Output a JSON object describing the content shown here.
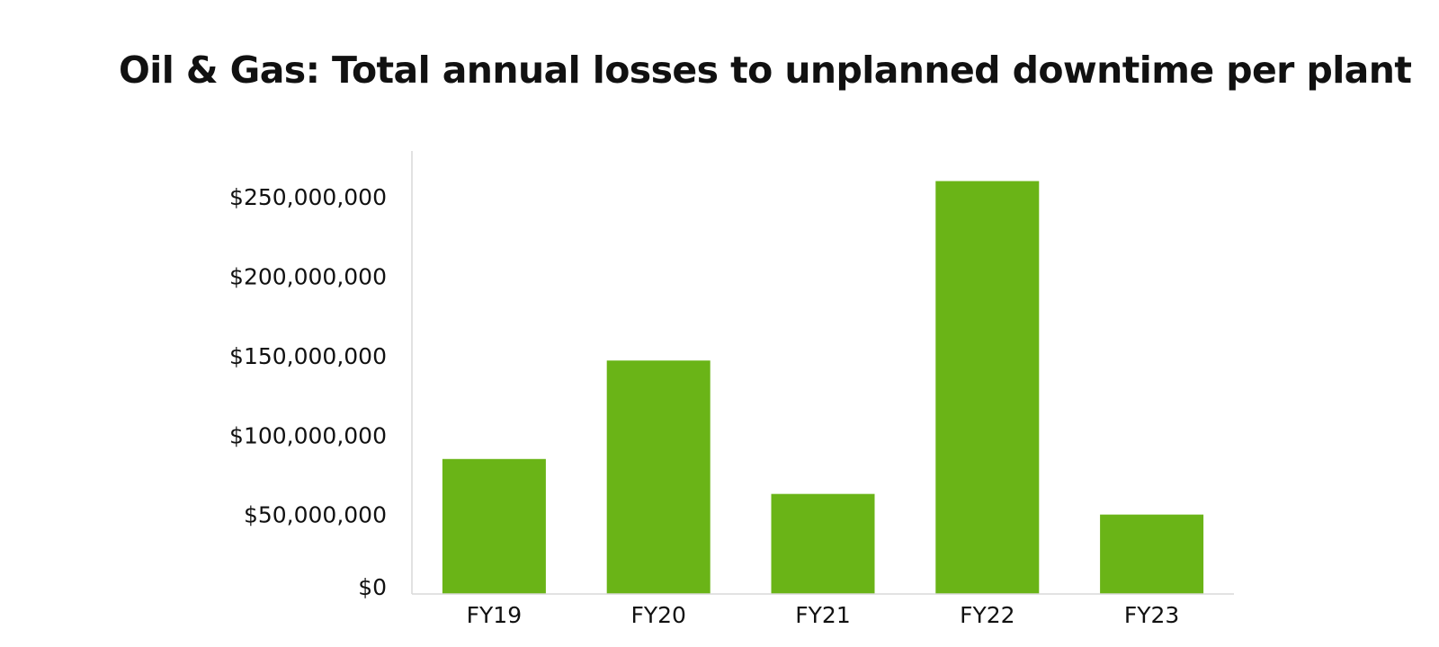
{
  "chart_data": {
    "type": "bar",
    "title": "Oil & Gas: Total annual losses to unplanned downtime per plant",
    "xlabel": "",
    "ylabel": "",
    "categories": [
      "FY19",
      "FY20",
      "FY21",
      "FY22",
      "FY23"
    ],
    "values": [
      85000000,
      147000000,
      63000000,
      260000000,
      50000000
    ],
    "ylim": [
      0,
      280000000
    ],
    "y_ticks": [
      0,
      50000000,
      100000000,
      150000000,
      200000000,
      250000000
    ],
    "y_tick_labels": [
      "$0",
      "$50,000,000",
      "$100,000,000",
      "$150,000,000",
      "$200,000,000",
      "$250,000,000"
    ],
    "grid": false,
    "legend": "none",
    "colors": {
      "bar": "#6ab417",
      "axis": "#d9d9d9",
      "text": "#111111"
    }
  }
}
